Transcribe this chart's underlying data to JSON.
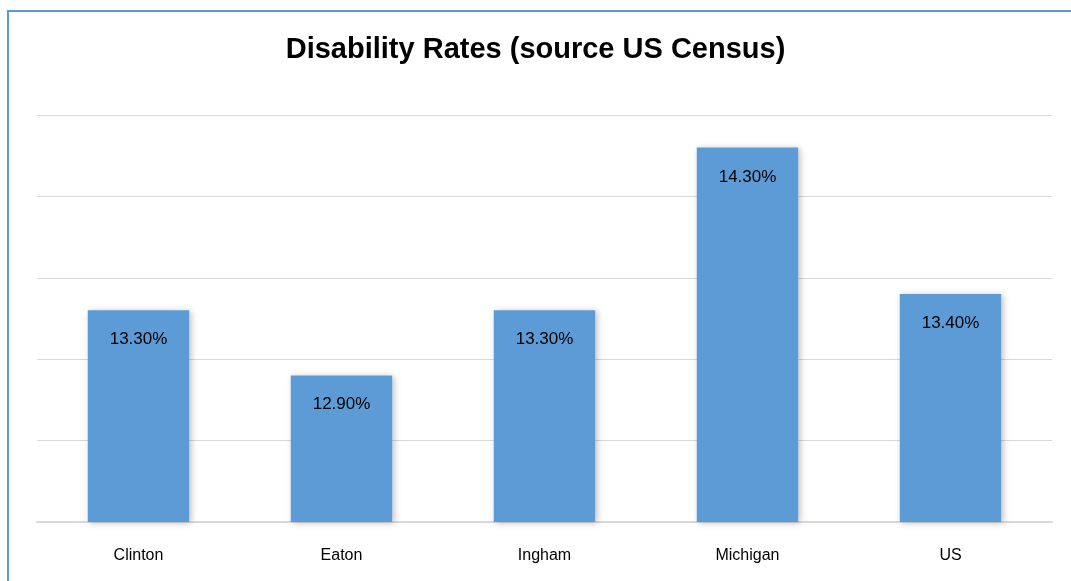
{
  "chart_data": {
    "type": "bar",
    "title": "Disability Rates (source US Census)",
    "categories": [
      "Clinton",
      "Eaton",
      "Ingham",
      "Michigan",
      "US"
    ],
    "values": [
      13.3,
      12.9,
      13.3,
      14.3,
      13.4
    ],
    "color": "#5b9bd5",
    "value_labels": [
      "13.30%",
      "12.90%",
      "13.30%",
      "14.30%",
      "13.40%"
    ],
    "ylim": [
      12,
      14.5
    ],
    "yticks": [
      {
        "value": 12,
        "label": null
      },
      {
        "value": 12.5,
        "label": null
      },
      {
        "value": 13,
        "label": null
      },
      {
        "value": 13.5,
        "label": null
      },
      {
        "value": 14,
        "label": null
      },
      {
        "value": 14.5,
        "label": null
      }
    ],
    "tick_labels": "x",
    "grid": "y"
  }
}
